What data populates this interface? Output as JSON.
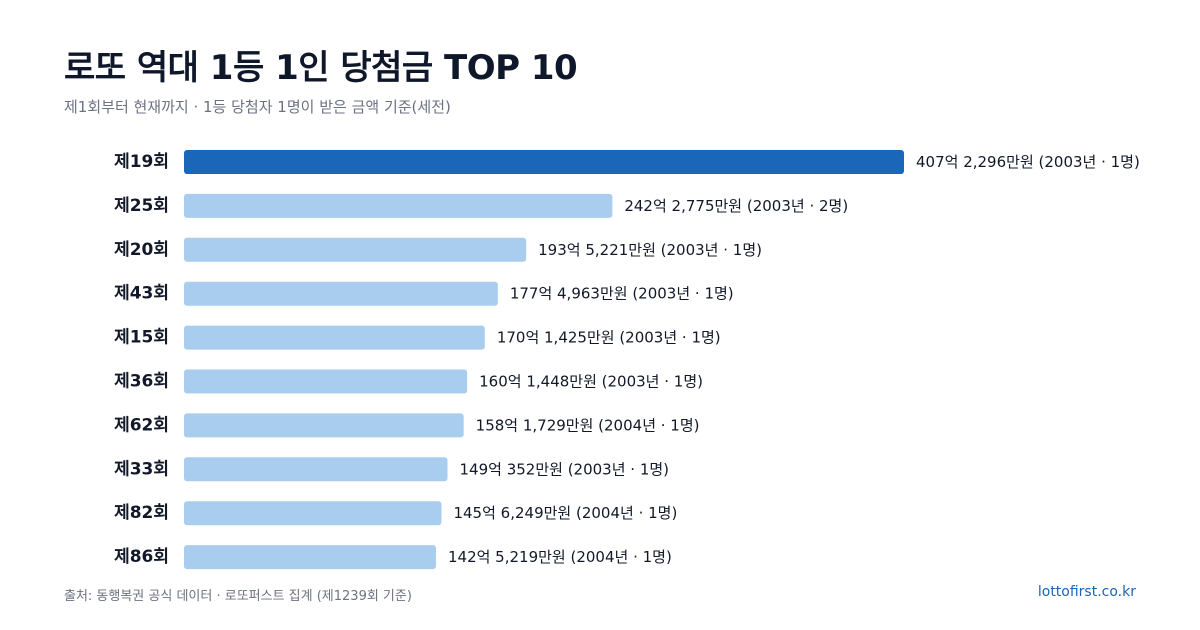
{
  "title": "로또 역대 1등 1인 당첨금 TOP 10",
  "subtitle": "제1회부터 현재까지 · 1등 당첨자 1명이 받은 금액 기준(세전)",
  "footer": {
    "source": "출처: 동행복권 공식 데이터 · 로또퍼스트 집계 (제1239회 기준)",
    "site": "lottofirst.co.kr"
  },
  "colors": {
    "highlight": "#1a66b8",
    "bar": "#a9cdee",
    "text": "#111827",
    "subtext": "#6b7280",
    "link": "#1d64b5"
  },
  "chart_data": {
    "type": "bar",
    "orientation": "horizontal",
    "unit": "원",
    "categories": [
      "제19회",
      "제25회",
      "제20회",
      "제43회",
      "제15회",
      "제36회",
      "제62회",
      "제33회",
      "제82회",
      "제86회"
    ],
    "values": [
      40722960000,
      24227750000,
      19352210000,
      17749630000,
      17014250000,
      16014480000,
      15817290000,
      14903520000,
      14562490000,
      14252190000
    ],
    "labels": [
      "407억 2,296만원 (2003년 · 1명)",
      "242억 2,775만원 (2003년 · 2명)",
      "193억 5,221만원 (2003년 · 1명)",
      "177억 4,963만원 (2003년 · 1명)",
      "170억 1,425만원 (2003년 · 1명)",
      "160억 1,448만원 (2003년 · 1명)",
      "158억 1,729만원 (2004년 · 1명)",
      "149억 352만원 (2003년 · 1명)",
      "145억 6,249만원 (2004년 · 1명)",
      "142억 5,219만원 (2004년 · 1명)"
    ],
    "highlight_index": 0,
    "grid": false,
    "legend": "none"
  }
}
